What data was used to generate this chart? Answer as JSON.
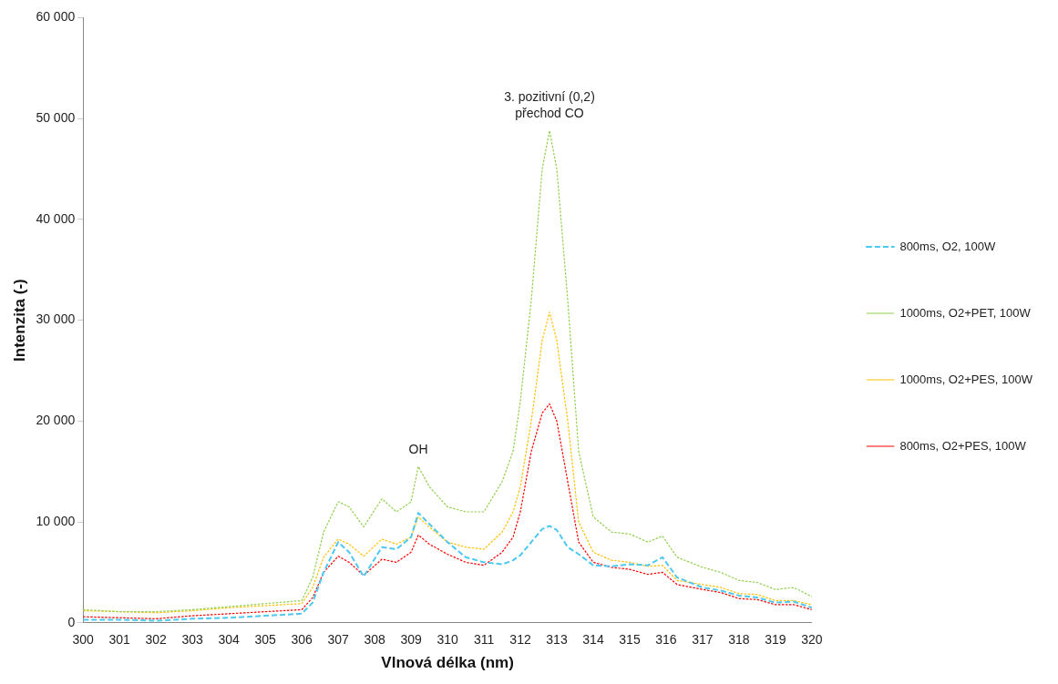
{
  "chart_data": {
    "type": "line",
    "xlabel": "Vlnová délka (nm)",
    "ylabel": "Intenzita (-)",
    "x": [
      300,
      301,
      302,
      303,
      304,
      305,
      306,
      306.3,
      306.6,
      307,
      307.3,
      307.7,
      308.2,
      308.6,
      309,
      309.2,
      309.5,
      310,
      310.5,
      311,
      311.5,
      311.8,
      312,
      312.3,
      312.6,
      312.8,
      313,
      313.3,
      313.6,
      314,
      314.5,
      315,
      315.5,
      315.9,
      316.3,
      317,
      317.5,
      318,
      318.5,
      319,
      319.5,
      320
    ],
    "series": [
      {
        "name": "800ms, O2, 100W",
        "color": "#4dc8f0",
        "line_style": "dashed",
        "values": [
          300,
          300,
          200,
          400,
          500,
          700,
          900,
          2000,
          5000,
          8000,
          7000,
          4600,
          7500,
          7300,
          8500,
          10900,
          9800,
          8000,
          6500,
          6000,
          5800,
          6200,
          6700,
          8000,
          9300,
          9600,
          9200,
          7500,
          6800,
          5700,
          5600,
          5800,
          5700,
          6500,
          4500,
          3500,
          3200,
          2700,
          2500,
          2000,
          2100,
          1500
        ]
      },
      {
        "name": "1000ms, O2+PET, 100W",
        "color": "#92d050",
        "line_style": "dotted",
        "values": [
          1300,
          1100,
          1100,
          1300,
          1600,
          1900,
          2200,
          4500,
          9000,
          12000,
          11500,
          9500,
          12300,
          11000,
          12000,
          15500,
          13500,
          11500,
          11000,
          11000,
          14000,
          17000,
          22000,
          32000,
          45000,
          48800,
          45000,
          32000,
          17000,
          10500,
          9000,
          8800,
          8000,
          8600,
          6500,
          5500,
          5000,
          4200,
          4000,
          3300,
          3500,
          2600
        ]
      },
      {
        "name": "1000ms, O2+PES, 100W",
        "color": "#ffc000",
        "line_style": "dotted",
        "values": [
          1200,
          1100,
          1000,
          1200,
          1500,
          1700,
          1900,
          3500,
          6500,
          8300,
          7800,
          6600,
          8300,
          7800,
          8500,
          10500,
          9500,
          8000,
          7500,
          7300,
          9000,
          11000,
          13500,
          20000,
          28000,
          30800,
          28000,
          20000,
          10000,
          7000,
          6200,
          6000,
          5600,
          5700,
          4200,
          3800,
          3500,
          2900,
          2800,
          2200,
          2200,
          1800
        ]
      },
      {
        "name": "800ms, O2+PES, 100W",
        "color": "#ff0000",
        "line_style": "dotted",
        "values": [
          600,
          500,
          400,
          700,
          900,
          1100,
          1300,
          2500,
          5000,
          6600,
          6000,
          4700,
          6300,
          6000,
          7000,
          8700,
          7800,
          6800,
          6000,
          5700,
          7000,
          8500,
          11000,
          17000,
          20800,
          21700,
          20000,
          14000,
          8000,
          6000,
          5500,
          5300,
          4800,
          5000,
          3800,
          3300,
          3000,
          2400,
          2300,
          1800,
          1800,
          1300
        ]
      }
    ],
    "xlim": [
      300,
      320
    ],
    "xticks": [
      300,
      301,
      302,
      303,
      304,
      305,
      306,
      307,
      308,
      309,
      310,
      311,
      312,
      313,
      314,
      315,
      316,
      317,
      318,
      319,
      320
    ],
    "ylim": [
      0,
      60000
    ],
    "yticks": [
      {
        "value": 0,
        "label": "0"
      },
      {
        "value": 10000,
        "label": "10 000"
      },
      {
        "value": 20000,
        "label": "20 000"
      },
      {
        "value": 30000,
        "label": "30 000"
      },
      {
        "value": 40000,
        "label": "40 000"
      },
      {
        "value": 50000,
        "label": "50 000"
      },
      {
        "value": 60000,
        "label": "60 000"
      }
    ],
    "annotations": [
      {
        "text": "3. pozitivní (0,2) přechod CO",
        "x": 312.8,
        "y": 48800
      },
      {
        "text": "OH",
        "x": 309.2,
        "y": 15500
      }
    ],
    "grid": false,
    "legend": "right",
    "marker": "none"
  }
}
